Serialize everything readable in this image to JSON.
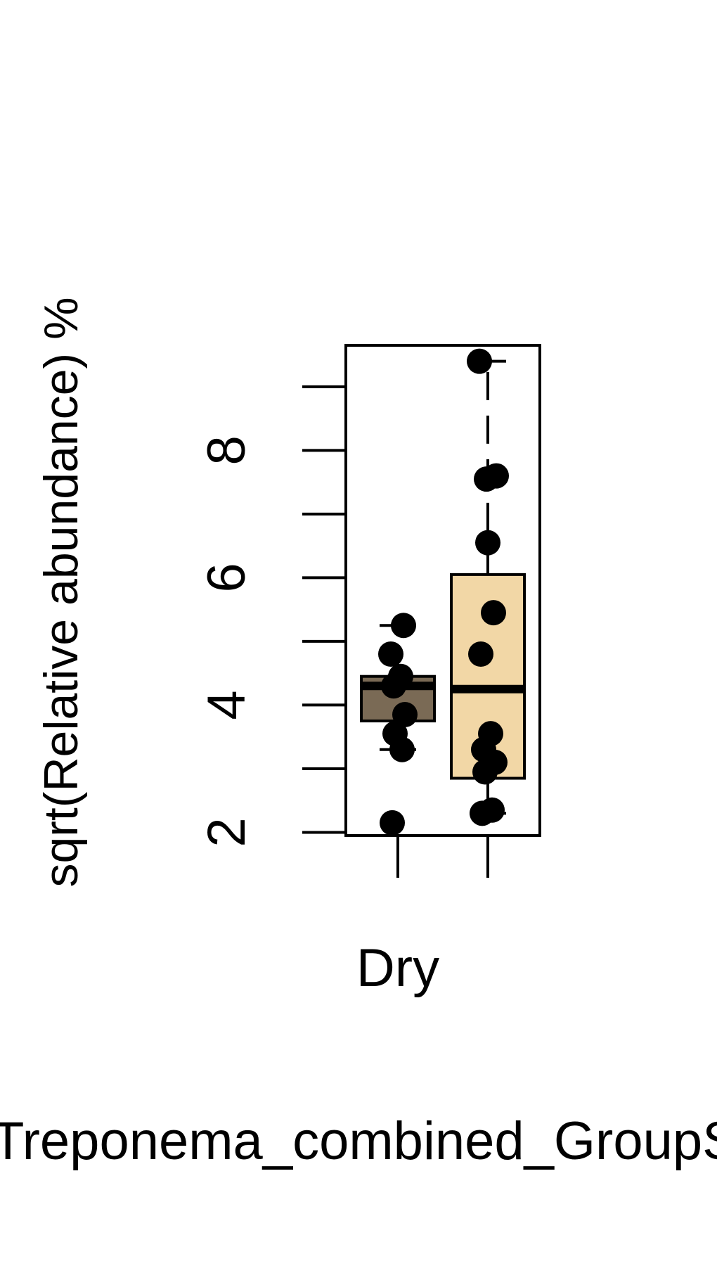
{
  "chart_data": {
    "type": "box",
    "title": "",
    "xlabel": "Dry",
    "ylabel": "sqrt(Relative abundance) %",
    "bottom_label": "Treponema_combined_GroupS",
    "yticks": [
      2,
      4,
      6,
      8
    ],
    "ytick_labels": [
      "2",
      "4",
      "6",
      "8"
    ],
    "y_minor_ticks": [
      3,
      5,
      7,
      9
    ],
    "ylim": [
      1.95,
      9.65
    ],
    "grid": false,
    "categories": [
      "",
      ""
    ],
    "series": [
      {
        "color": "#7a6a55",
        "box": {
          "whisker_low": 3.3,
          "q1": 3.75,
          "median": 4.3,
          "q3": 4.45,
          "whisker_high": 5.25
        },
        "points": [
          2.15,
          3.3,
          3.55,
          3.85,
          4.3,
          4.45,
          4.8,
          5.25
        ]
      },
      {
        "color": "#f2d7a6",
        "box": {
          "whisker_low": 2.3,
          "q1": 2.85,
          "median": 4.25,
          "q3": 6.05,
          "whisker_high": 9.4
        },
        "points": [
          2.3,
          2.35,
          2.95,
          3.1,
          3.3,
          3.55,
          4.8,
          5.45,
          6.55,
          7.55,
          7.6,
          9.4
        ]
      }
    ]
  }
}
